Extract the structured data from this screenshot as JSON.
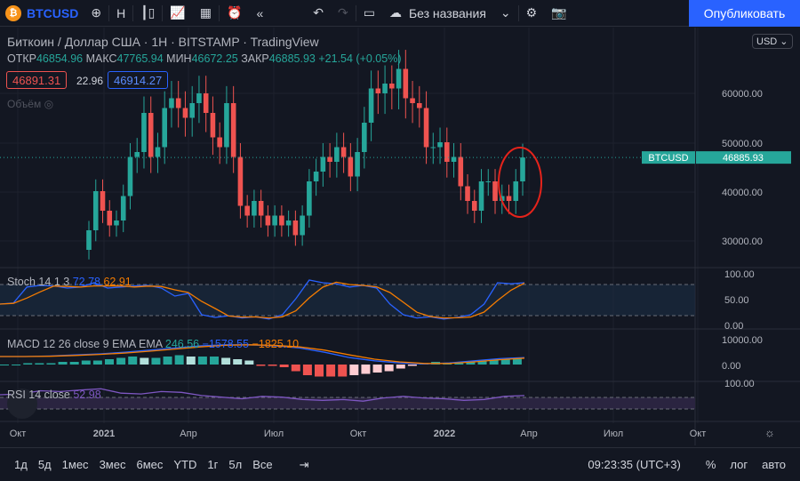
{
  "toolbar": {
    "symbol": "BTCUSD",
    "logo": "₿",
    "interval": "H",
    "layout_name": "Без названия",
    "publish": "Опубликовать"
  },
  "legend": {
    "title": "Биткоин / Доллар США · 1H · BITSTAMP · TradingView",
    "open_label": "ОТКР",
    "open": "46854.96",
    "high_label": "МАКС",
    "high": "47765.94",
    "low_label": "МИН",
    "low": "46672.25",
    "close_label": "ЗАКР",
    "close": "46885.93",
    "change": "+21.54 (+0.05%)",
    "bid": "46891.31",
    "spread": "22.96",
    "ask": "46914.27",
    "volume_label": "Объём"
  },
  "currency": "USD",
  "price_axis": [
    "60000.00",
    "50000.00",
    "40000.00",
    "30000.00"
  ],
  "last_price_tag": {
    "symbol": "BTCUSD",
    "price": "46885.93"
  },
  "stoch": {
    "label": "Stoch 14 1 3",
    "k": "72.78",
    "d": "62.91",
    "axis": [
      "100.00",
      "50.00",
      "0.00"
    ]
  },
  "macd": {
    "label": "MACD 12 26 close 9 EMA EMA",
    "hist": "246.56",
    "macd": "−1578.55",
    "signal": "−1825.10",
    "axis": [
      "10000.00",
      "0.00"
    ]
  },
  "rsi": {
    "label": "RSI 14 close",
    "value": "52.98",
    "axis": [
      "100.00"
    ]
  },
  "time_axis": [
    "Окт",
    "2021",
    "Апр",
    "Июл",
    "Окт",
    "2022",
    "Апр",
    "Июл",
    "Окт"
  ],
  "ranges": [
    "1д",
    "5д",
    "1мес",
    "3мес",
    "6мес",
    "YTD",
    "1г",
    "5л",
    "Все"
  ],
  "clock": "09:23:35 (UTC+3)",
  "scale_opts": [
    "%",
    "лог",
    "авто"
  ],
  "colors": {
    "up": "#26a69a",
    "down": "#ef5350",
    "accent": "#2962ff"
  },
  "chart_data": {
    "type": "candlestick",
    "interval": "1W",
    "start_open": 28000,
    "closes": [
      32000,
      40000,
      36000,
      33000,
      34000,
      39000,
      47000,
      48000,
      56000,
      47000,
      49000,
      57000,
      59000,
      57000,
      55000,
      58000,
      60000,
      56000,
      51000,
      49000,
      58000,
      47000,
      37000,
      35000,
      38000,
      35000,
      33000,
      35000,
      33000,
      34000,
      31000,
      35000,
      42000,
      44000,
      47000,
      46000,
      49000,
      47000,
      43000,
      48000,
      54000,
      61000,
      60000,
      62000,
      61000,
      65000,
      59000,
      58000,
      57000,
      49000,
      49000,
      50000,
      46000,
      47000,
      41000,
      38000,
      36000,
      42000,
      42000,
      38000,
      39000,
      38000,
      42000,
      46886
    ],
    "ylim": [
      25000,
      70000
    ]
  }
}
